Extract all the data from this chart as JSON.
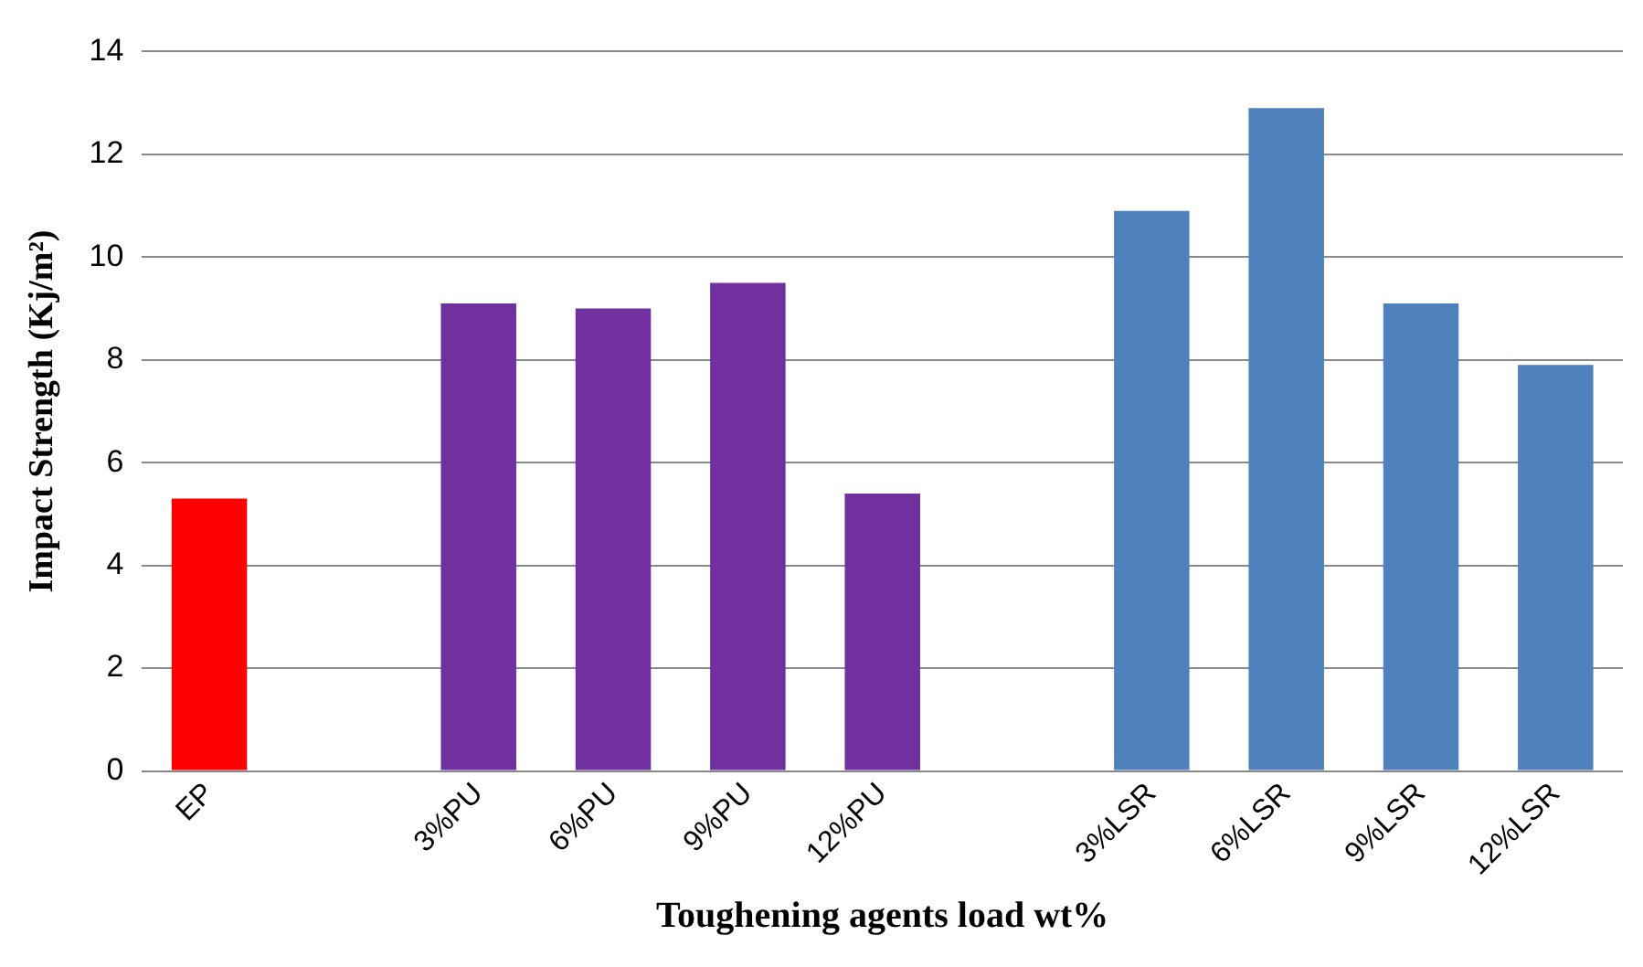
{
  "chart_data": {
    "type": "bar",
    "xlabel": "Toughening agents load wt%",
    "ylabel": "Impact Strength (Kj/m²)",
    "categories": [
      "EP",
      null,
      "3%PU",
      "6%PU",
      "9%PU",
      "12%PU",
      null,
      "3%LSR",
      "6%LSR",
      "9%LSR",
      "12%LSR"
    ],
    "values": [
      5.3,
      null,
      9.1,
      9.0,
      9.5,
      5.4,
      null,
      10.9,
      12.9,
      9.1,
      7.9
    ],
    "colors": [
      "#ff0000",
      null,
      "#7030a0",
      "#7030a0",
      "#7030a0",
      "#7030a0",
      null,
      "#4f81bd",
      "#4f81bd",
      "#4f81bd",
      "#4f81bd"
    ],
    "ylim": [
      0,
      14
    ],
    "yticks": [
      0,
      2,
      4,
      6,
      8,
      10,
      12,
      14
    ],
    "grid": "y",
    "legend": false
  }
}
